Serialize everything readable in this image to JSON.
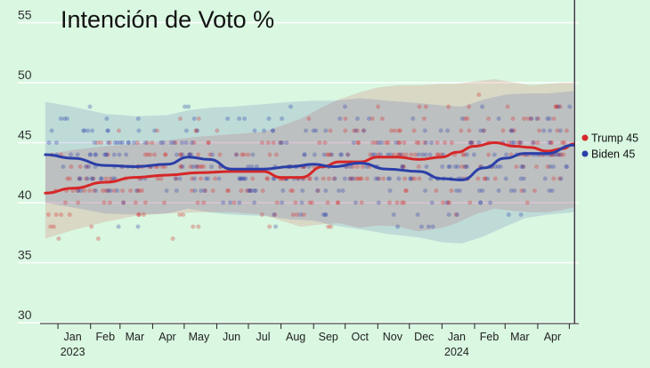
{
  "chart_data": {
    "type": "scatter",
    "title": "Intención de Voto %",
    "ylim": [
      30,
      56
    ],
    "xlim": [
      "2022-12-15",
      "2024-05-10"
    ],
    "yticks": [
      30,
      35,
      40,
      45,
      50,
      55
    ],
    "grid": "horizontal",
    "background_color": "#d9f7e1",
    "x_tick_labels": [
      {
        "label": "Jan",
        "date": "2023-01-15",
        "year": "2023"
      },
      {
        "label": "Feb",
        "date": "2023-02-15"
      },
      {
        "label": "Mar",
        "date": "2023-03-15"
      },
      {
        "label": "Apr",
        "date": "2023-04-15"
      },
      {
        "label": "May",
        "date": "2023-05-15"
      },
      {
        "label": "Jun",
        "date": "2023-06-15"
      },
      {
        "label": "Jul",
        "date": "2023-07-15"
      },
      {
        "label": "Aug",
        "date": "2023-08-15"
      },
      {
        "label": "Sep",
        "date": "2023-09-15"
      },
      {
        "label": "Oct",
        "date": "2023-10-15"
      },
      {
        "label": "Nov",
        "date": "2023-11-15"
      },
      {
        "label": "Dec",
        "date": "2023-12-15"
      },
      {
        "label": "Jan",
        "date": "2024-01-15",
        "year": "2024"
      },
      {
        "label": "Feb",
        "date": "2024-02-15"
      },
      {
        "label": "Mar",
        "date": "2024-03-15"
      },
      {
        "label": "Apr",
        "date": "2024-04-15"
      }
    ],
    "x_minor_ticks": [
      "2023-01-01",
      "2023-02-01",
      "2023-03-01",
      "2023-04-01",
      "2023-05-01",
      "2023-06-01",
      "2023-07-01",
      "2023-08-01",
      "2023-09-01",
      "2023-10-01",
      "2023-11-01",
      "2023-12-01",
      "2024-01-01",
      "2024-02-01",
      "2024-03-01",
      "2024-04-01",
      "2024-05-01"
    ],
    "cutoff_line_date": "2024-05-06",
    "series": [
      {
        "name": "Trump",
        "legend_label": "Trump 45",
        "color": "#d62728",
        "trend": {
          "dates": [
            "2022-12-20",
            "2023-01-15",
            "2023-02-15",
            "2023-03-15",
            "2023-04-15",
            "2023-05-15",
            "2023-06-15",
            "2023-07-15",
            "2023-08-01",
            "2023-08-20",
            "2023-09-10",
            "2023-09-25",
            "2023-10-15",
            "2023-11-01",
            "2023-11-20",
            "2023-12-10",
            "2024-01-01",
            "2024-01-15",
            "2024-02-01",
            "2024-02-20",
            "2024-03-10",
            "2024-03-25",
            "2024-04-10",
            "2024-04-25",
            "2024-05-05"
          ],
          "values": [
            40.8,
            41.2,
            41.7,
            42.1,
            42.3,
            42.5,
            42.6,
            42.6,
            42.1,
            42.1,
            43.0,
            43.4,
            43.4,
            43.8,
            43.8,
            43.6,
            43.8,
            44.2,
            44.7,
            45.0,
            44.7,
            44.6,
            44.3,
            44.5,
            44.9
          ]
        },
        "band": {
          "upper": [
            44.0,
            44.4,
            44.7,
            44.9,
            45.2,
            45.5,
            45.7,
            45.9,
            46.4,
            47.0,
            48.0,
            48.6,
            49.2,
            49.6,
            49.8,
            49.8,
            49.9,
            49.9,
            50.1,
            50.3,
            50.0,
            49.8,
            49.9,
            50.0,
            50.0
          ],
          "lower": [
            37.0,
            37.7,
            38.4,
            38.9,
            39.1,
            39.2,
            39.2,
            39.0,
            38.5,
            38.0,
            38.2,
            38.3,
            37.9,
            38.1,
            38.0,
            37.6,
            37.9,
            38.3,
            39.0,
            39.5,
            39.3,
            39.2,
            39.2,
            39.4,
            39.6
          ]
        }
      },
      {
        "name": "Biden",
        "legend_label": "Biden 45",
        "color": "#2b3fa8",
        "trend": {
          "dates": [
            "2022-12-20",
            "2023-01-15",
            "2023-02-15",
            "2023-03-15",
            "2023-04-15",
            "2023-05-05",
            "2023-05-25",
            "2023-06-15",
            "2023-07-15",
            "2023-08-10",
            "2023-09-01",
            "2023-09-20",
            "2023-10-15",
            "2023-11-10",
            "2023-12-10",
            "2024-01-01",
            "2024-01-20",
            "2024-02-10",
            "2024-03-01",
            "2024-03-20",
            "2024-04-10",
            "2024-05-05"
          ],
          "values": [
            44.0,
            43.7,
            43.1,
            43.0,
            43.2,
            43.8,
            43.6,
            42.8,
            42.8,
            43.0,
            43.2,
            43.0,
            43.3,
            42.8,
            42.6,
            42.0,
            41.9,
            42.9,
            43.7,
            44.1,
            44.1,
            44.8
          ]
        },
        "band": {
          "upper": [
            48.4,
            48.0,
            47.4,
            47.2,
            47.3,
            47.7,
            47.9,
            48.0,
            48.2,
            48.4,
            48.5,
            48.5,
            48.7,
            48.5,
            48.3,
            48.1,
            48.0,
            48.6,
            49.0,
            49.1,
            49.1,
            49.3
          ],
          "lower": [
            40.0,
            39.6,
            39.1,
            39.0,
            39.1,
            39.5,
            39.2,
            39.0,
            38.9,
            38.6,
            38.5,
            38.1,
            37.8,
            37.4,
            37.1,
            36.7,
            36.6,
            37.2,
            38.0,
            38.7,
            39.0,
            39.2
          ]
        }
      }
    ],
    "scatter_note": "Individual polls shown as faint dots of each series colour scattered around the trend lines"
  }
}
